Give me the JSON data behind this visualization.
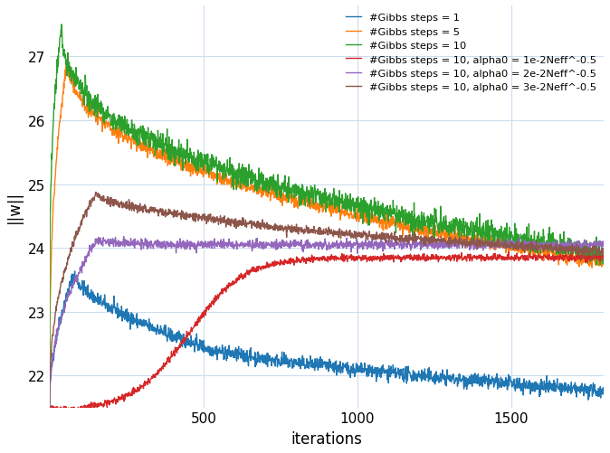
{
  "title": "",
  "xlabel": "iterations",
  "ylabel": "||w||",
  "xlim": [
    0,
    1800
  ],
  "ylim": [
    21.5,
    27.8
  ],
  "yticks": [
    22,
    23,
    24,
    25,
    26,
    27
  ],
  "xticks": [
    500,
    1000,
    1500
  ],
  "n_points": 1800,
  "colors": {
    "gibbs1": "#1f77b4",
    "gibbs5": "#ff7f0e",
    "gibbs10": "#2ca02c",
    "gibbs10_alpha1": "#d62728",
    "gibbs10_alpha2": "#9467bd",
    "gibbs10_alpha3": "#8c564b"
  },
  "legend_labels": [
    "#Gibbs steps = 1",
    "#Gibbs steps = 5",
    "#Gibbs steps = 10",
    "#Gibbs steps = 10, alpha0 = 1e-2Neff^-0.5",
    "#Gibbs steps = 10, alpha0 = 2e-2Neff^-0.5",
    "#Gibbs steps = 10, alpha0 = 3e-2Neff^-0.5"
  ],
  "background_color": "#ffffff",
  "grid_color": "#ccddee"
}
